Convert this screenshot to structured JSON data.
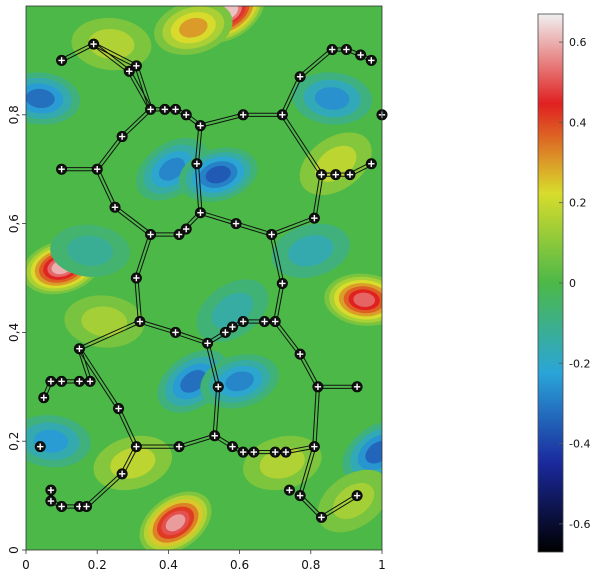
{
  "chart_data": {
    "type": "heatmap",
    "title": "",
    "xlabel": "",
    "ylabel": "",
    "xlim": [
      0,
      1
    ],
    "ylim": [
      0,
      1
    ],
    "x_ticks": [
      {
        "value": 0,
        "label": "0"
      },
      {
        "value": 0.2,
        "label": "0.2"
      },
      {
        "value": 0.4,
        "label": "0.4"
      },
      {
        "value": 0.6,
        "label": "0.6"
      },
      {
        "value": 0.8,
        "label": "0.8"
      },
      {
        "value": 1,
        "label": "1"
      }
    ],
    "y_ticks": [
      {
        "value": 0,
        "label": "0"
      },
      {
        "value": 0.2,
        "label": "0,2"
      },
      {
        "value": 0.4,
        "label": "0,4"
      },
      {
        "value": 0.6,
        "label": "0,6"
      },
      {
        "value": 0.8,
        "label": "0,8"
      }
    ],
    "colorbar": {
      "range": [
        -0.67,
        0.67
      ],
      "ticks": [
        {
          "value": 0.6,
          "label": "0.6"
        },
        {
          "value": 0.4,
          "label": "0.4"
        },
        {
          "value": 0.2,
          "label": "0.2"
        },
        {
          "value": 0,
          "label": "0"
        },
        {
          "value": -0.2,
          "label": "-0.2"
        },
        {
          "value": -0.4,
          "label": "-0.4"
        },
        {
          "value": -0.6,
          "label": "-0.6"
        }
      ],
      "colors": [
        "#000000",
        "#1b2a9e",
        "#2aa5d8",
        "#4cb848",
        "#d8dc2c",
        "#e02020",
        "#f0f0f0"
      ]
    },
    "field_blobs": [
      {
        "x": 0.57,
        "y": 0.99,
        "v": 0.62
      },
      {
        "x": 0.1,
        "y": 0.52,
        "v": 0.6
      },
      {
        "x": 0.95,
        "y": 0.46,
        "v": 0.52
      },
      {
        "x": 0.42,
        "y": 0.05,
        "v": 0.58
      },
      {
        "x": 0.47,
        "y": 0.96,
        "v": 0.3
      },
      {
        "x": 0.04,
        "y": 0.83,
        "v": -0.32
      },
      {
        "x": 0.41,
        "y": 0.7,
        "v": -0.28
      },
      {
        "x": 0.54,
        "y": 0.69,
        "v": -0.36
      },
      {
        "x": 0.86,
        "y": 0.83,
        "v": -0.26
      },
      {
        "x": 0.47,
        "y": 0.31,
        "v": -0.32
      },
      {
        "x": 0.6,
        "y": 0.31,
        "v": -0.28
      },
      {
        "x": 0.07,
        "y": 0.2,
        "v": -0.24
      },
      {
        "x": 0.99,
        "y": 0.18,
        "v": -0.34
      },
      {
        "x": 0.72,
        "y": 0.16,
        "v": 0.16
      },
      {
        "x": 0.24,
        "y": 0.93,
        "v": 0.16
      },
      {
        "x": 0.87,
        "y": 0.71,
        "v": 0.18
      },
      {
        "x": 0.3,
        "y": 0.16,
        "v": 0.18
      },
      {
        "x": 0.22,
        "y": 0.42,
        "v": 0.14
      },
      {
        "x": 0.58,
        "y": 0.44,
        "v": -0.14
      },
      {
        "x": 0.8,
        "y": 0.55,
        "v": -0.16
      },
      {
        "x": 0.18,
        "y": 0.55,
        "v": -0.12
      },
      {
        "x": 0.92,
        "y": 0.09,
        "v": 0.14
      }
    ],
    "atoms": [
      {
        "x": 0.1,
        "y": 0.9
      },
      {
        "x": 0.19,
        "y": 0.93
      },
      {
        "x": 0.29,
        "y": 0.88
      },
      {
        "x": 0.31,
        "y": 0.89
      },
      {
        "x": 0.35,
        "y": 0.81
      },
      {
        "x": 0.39,
        "y": 0.81
      },
      {
        "x": 0.42,
        "y": 0.81
      },
      {
        "x": 0.45,
        "y": 0.8
      },
      {
        "x": 0.49,
        "y": 0.78
      },
      {
        "x": 0.61,
        "y": 0.8
      },
      {
        "x": 0.72,
        "y": 0.8
      },
      {
        "x": 0.77,
        "y": 0.87
      },
      {
        "x": 0.86,
        "y": 0.92
      },
      {
        "x": 0.9,
        "y": 0.92
      },
      {
        "x": 0.94,
        "y": 0.91
      },
      {
        "x": 0.97,
        "y": 0.9
      },
      {
        "x": 1.0,
        "y": 0.8
      },
      {
        "x": 0.27,
        "y": 0.76
      },
      {
        "x": 0.1,
        "y": 0.7
      },
      {
        "x": 0.2,
        "y": 0.7
      },
      {
        "x": 0.48,
        "y": 0.71
      },
      {
        "x": 0.83,
        "y": 0.69
      },
      {
        "x": 0.87,
        "y": 0.69
      },
      {
        "x": 0.91,
        "y": 0.69
      },
      {
        "x": 0.97,
        "y": 0.71
      },
      {
        "x": 0.25,
        "y": 0.63
      },
      {
        "x": 0.49,
        "y": 0.62
      },
      {
        "x": 0.59,
        "y": 0.6
      },
      {
        "x": 0.81,
        "y": 0.61
      },
      {
        "x": 0.35,
        "y": 0.58
      },
      {
        "x": 0.43,
        "y": 0.58
      },
      {
        "x": 0.45,
        "y": 0.59
      },
      {
        "x": 0.69,
        "y": 0.58
      },
      {
        "x": 0.31,
        "y": 0.5
      },
      {
        "x": 0.72,
        "y": 0.49
      },
      {
        "x": 0.32,
        "y": 0.42
      },
      {
        "x": 0.42,
        "y": 0.4
      },
      {
        "x": 0.51,
        "y": 0.38
      },
      {
        "x": 0.56,
        "y": 0.4
      },
      {
        "x": 0.58,
        "y": 0.41
      },
      {
        "x": 0.61,
        "y": 0.42
      },
      {
        "x": 0.67,
        "y": 0.42
      },
      {
        "x": 0.7,
        "y": 0.42
      },
      {
        "x": 0.15,
        "y": 0.37
      },
      {
        "x": 0.77,
        "y": 0.36
      },
      {
        "x": 0.07,
        "y": 0.31
      },
      {
        "x": 0.1,
        "y": 0.31
      },
      {
        "x": 0.15,
        "y": 0.31
      },
      {
        "x": 0.18,
        "y": 0.31
      },
      {
        "x": 0.05,
        "y": 0.28
      },
      {
        "x": 0.54,
        "y": 0.3
      },
      {
        "x": 0.82,
        "y": 0.3
      },
      {
        "x": 0.93,
        "y": 0.3
      },
      {
        "x": 0.26,
        "y": 0.26
      },
      {
        "x": 0.53,
        "y": 0.21
      },
      {
        "x": 0.04,
        "y": 0.19
      },
      {
        "x": 0.31,
        "y": 0.19
      },
      {
        "x": 0.43,
        "y": 0.19
      },
      {
        "x": 0.58,
        "y": 0.19
      },
      {
        "x": 0.61,
        "y": 0.18
      },
      {
        "x": 0.64,
        "y": 0.18
      },
      {
        "x": 0.7,
        "y": 0.18
      },
      {
        "x": 0.73,
        "y": 0.18
      },
      {
        "x": 0.81,
        "y": 0.19
      },
      {
        "x": 0.27,
        "y": 0.14
      },
      {
        "x": 0.07,
        "y": 0.11
      },
      {
        "x": 0.74,
        "y": 0.11
      },
      {
        "x": 0.07,
        "y": 0.09
      },
      {
        "x": 0.1,
        "y": 0.08
      },
      {
        "x": 0.15,
        "y": 0.08
      },
      {
        "x": 0.17,
        "y": 0.08
      },
      {
        "x": 0.77,
        "y": 0.1
      },
      {
        "x": 0.83,
        "y": 0.06
      },
      {
        "x": 0.93,
        "y": 0.1
      }
    ],
    "bonds": [
      [
        0,
        1
      ],
      [
        1,
        2
      ],
      [
        1,
        3
      ],
      [
        2,
        4
      ],
      [
        3,
        4
      ],
      [
        4,
        5
      ],
      [
        5,
        6
      ],
      [
        6,
        7
      ],
      [
        7,
        8
      ],
      [
        8,
        9
      ],
      [
        9,
        10
      ],
      [
        10,
        11
      ],
      [
        11,
        12
      ],
      [
        12,
        13
      ],
      [
        13,
        14
      ],
      [
        14,
        15
      ],
      [
        4,
        17
      ],
      [
        17,
        19
      ],
      [
        18,
        19
      ],
      [
        19,
        25
      ],
      [
        25,
        29
      ],
      [
        8,
        20
      ],
      [
        20,
        26
      ],
      [
        26,
        30
      ],
      [
        29,
        30
      ],
      [
        30,
        31
      ],
      [
        26,
        27
      ],
      [
        27,
        32
      ],
      [
        10,
        21
      ],
      [
        21,
        22
      ],
      [
        22,
        23
      ],
      [
        23,
        24
      ],
      [
        21,
        28
      ],
      [
        28,
        32
      ],
      [
        32,
        34
      ],
      [
        29,
        33
      ],
      [
        33,
        35
      ],
      [
        35,
        36
      ],
      [
        36,
        37
      ],
      [
        37,
        38
      ],
      [
        38,
        39
      ],
      [
        39,
        40
      ],
      [
        40,
        41
      ],
      [
        41,
        42
      ],
      [
        34,
        42
      ],
      [
        35,
        43
      ],
      [
        42,
        44
      ],
      [
        43,
        48
      ],
      [
        45,
        46
      ],
      [
        46,
        47
      ],
      [
        47,
        48
      ],
      [
        45,
        49
      ],
      [
        37,
        50
      ],
      [
        50,
        54
      ],
      [
        44,
        51
      ],
      [
        51,
        52
      ],
      [
        43,
        53
      ],
      [
        53,
        56
      ],
      [
        56,
        57
      ],
      [
        57,
        54
      ],
      [
        54,
        58
      ],
      [
        58,
        59
      ],
      [
        59,
        60
      ],
      [
        60,
        61
      ],
      [
        61,
        62
      ],
      [
        62,
        63
      ],
      [
        51,
        63
      ],
      [
        56,
        64
      ],
      [
        64,
        70
      ],
      [
        65,
        67
      ],
      [
        67,
        68
      ],
      [
        68,
        69
      ],
      [
        69,
        70
      ],
      [
        63,
        71
      ],
      [
        71,
        72
      ],
      [
        72,
        73
      ]
    ]
  }
}
